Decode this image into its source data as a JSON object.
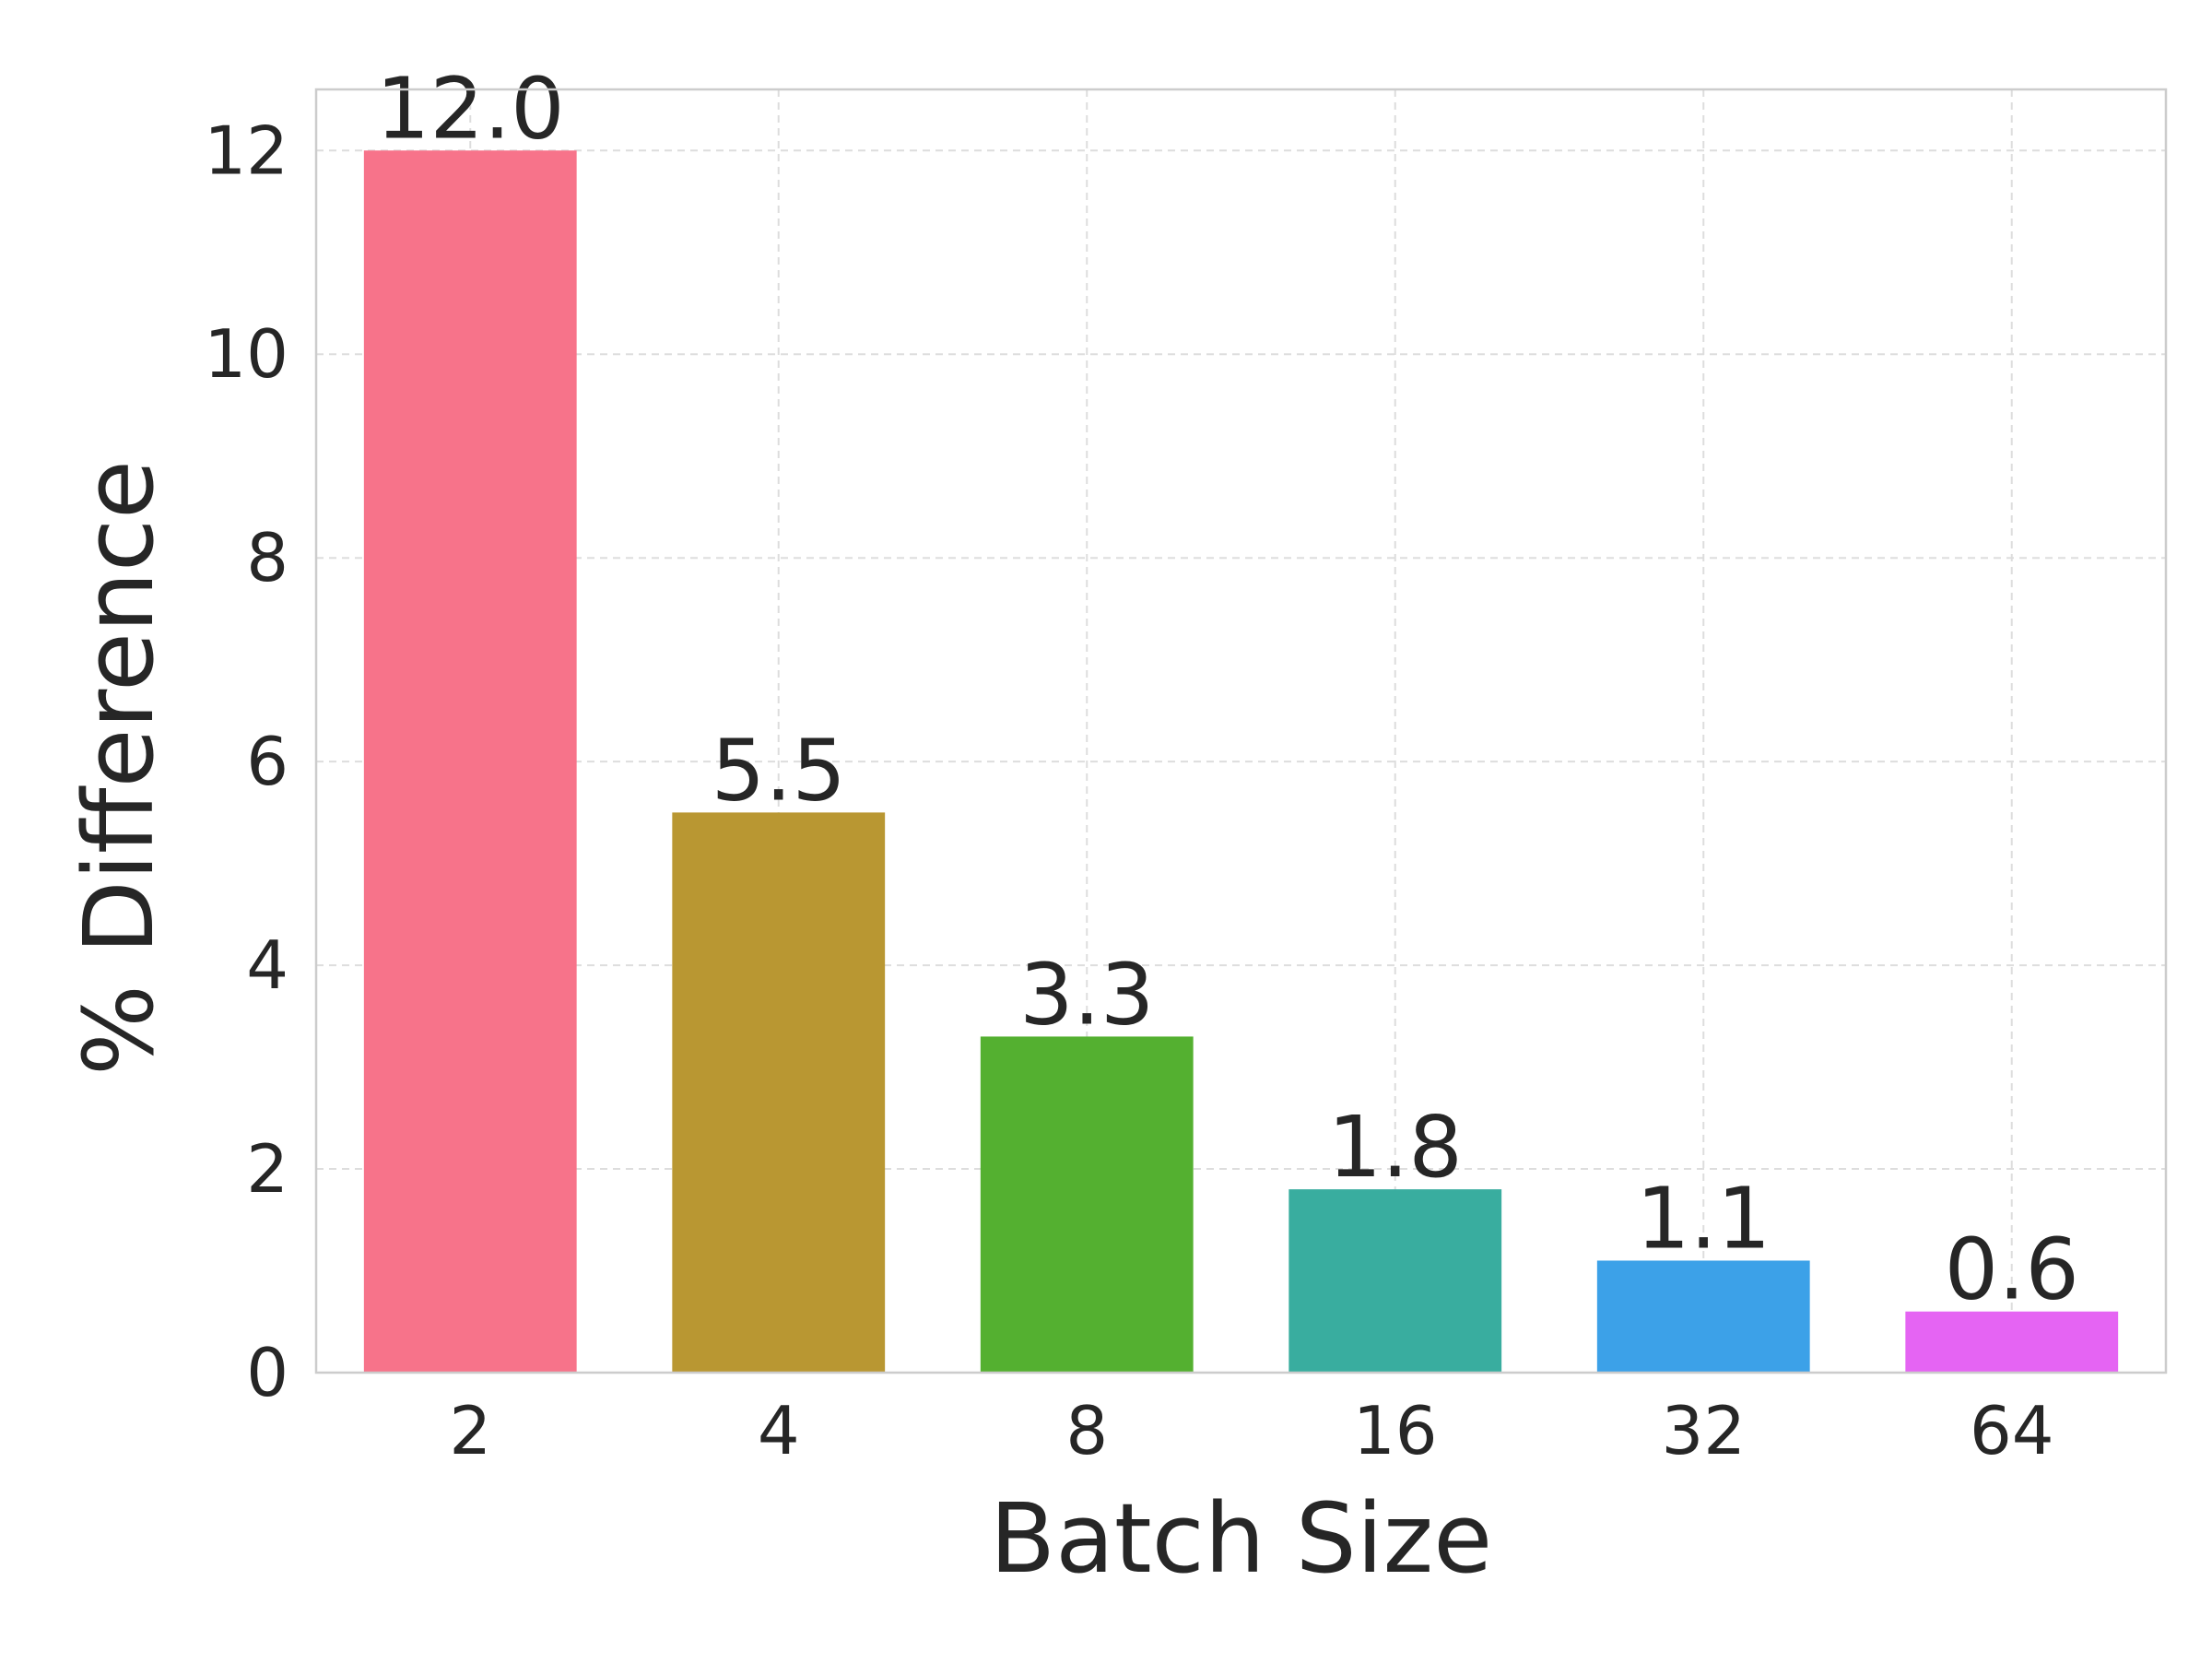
{
  "chart_data": {
    "type": "bar",
    "title": "",
    "xlabel": "Batch Size",
    "ylabel": "% Difference",
    "categories": [
      "2",
      "4",
      "8",
      "16",
      "32",
      "64"
    ],
    "values": [
      12.0,
      5.5,
      3.3,
      1.8,
      1.1,
      0.6
    ],
    "data_labels": [
      "12.0",
      "5.5",
      "3.3",
      "1.8",
      "1.1",
      "0.6"
    ],
    "colors": [
      "#f7738a",
      "#b99732",
      "#54b030",
      "#39ad9f",
      "#3ca1e8",
      "#e564f3"
    ],
    "ylim": [
      0,
      12.6
    ],
    "yticks": [
      0,
      2,
      4,
      6,
      8,
      10,
      12
    ],
    "grid": true,
    "legend": "none"
  }
}
